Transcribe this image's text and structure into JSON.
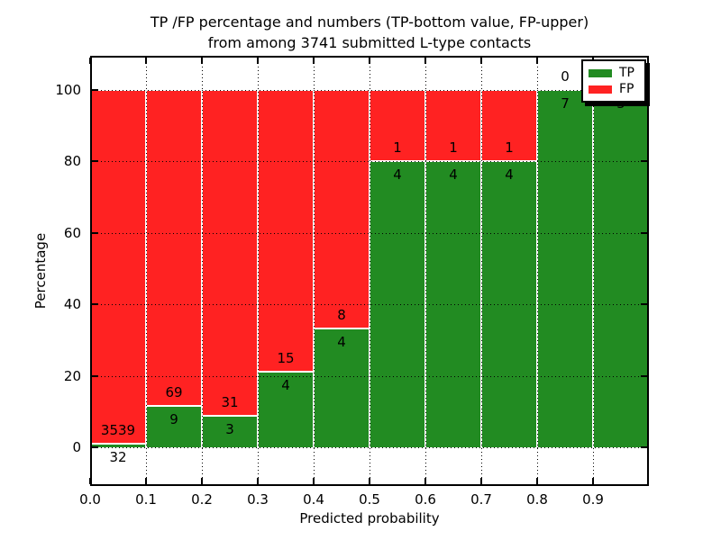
{
  "chart_data": {
    "type": "bar",
    "stacked": true,
    "title_line1": "TP /FP percentage and numbers (TP-bottom value, FP-upper)",
    "title_line2": "from among 3741 submitted L-type contacts",
    "xlabel": "Predicted probability",
    "ylabel": "Percentage",
    "x_tick_labels": [
      "0.0",
      "0.1",
      "0.2",
      "0.3",
      "0.4",
      "0.5",
      "0.6",
      "0.7",
      "0.8",
      "0.9"
    ],
    "y_tick_labels": [
      "0",
      "20",
      "40",
      "60",
      "80",
      "100"
    ],
    "y_tick_values": [
      0,
      20,
      40,
      60,
      80,
      100
    ],
    "xlim": [
      0.0,
      1.0
    ],
    "ylim": [
      -10.8,
      109.6
    ],
    "grid": {
      "style": "dotted",
      "color": "#000000",
      "on": true
    },
    "colors": {
      "tp": "#228B22",
      "fp": "#FF2222",
      "bar_edge": "#FFFFFF",
      "background": "#FFFFFF",
      "text": "#000000"
    },
    "legend": {
      "position": "upper right",
      "shadow": true,
      "entries": [
        {
          "label": "TP",
          "color_key": "tp"
        },
        {
          "label": "FP",
          "color_key": "fp"
        }
      ]
    },
    "bins": [
      {
        "x_range": [
          0.0,
          0.1
        ],
        "tp_count": "32",
        "fp_count": "3539",
        "tp_pct": 0.9,
        "fp_pct": 99.1
      },
      {
        "x_range": [
          0.1,
          0.2
        ],
        "tp_count": "9",
        "fp_count": "69",
        "tp_pct": 11.54,
        "fp_pct": 88.46
      },
      {
        "x_range": [
          0.2,
          0.3
        ],
        "tp_count": "3",
        "fp_count": "31",
        "tp_pct": 8.82,
        "fp_pct": 91.18
      },
      {
        "x_range": [
          0.3,
          0.4
        ],
        "tp_count": "4",
        "fp_count": "15",
        "tp_pct": 21.05,
        "fp_pct": 78.95
      },
      {
        "x_range": [
          0.4,
          0.5
        ],
        "tp_count": "4",
        "fp_count": "8",
        "tp_pct": 33.33,
        "fp_pct": 66.67
      },
      {
        "x_range": [
          0.5,
          0.6
        ],
        "tp_count": "4",
        "fp_count": "1",
        "tp_pct": 80.0,
        "fp_pct": 20.0
      },
      {
        "x_range": [
          0.6,
          0.7
        ],
        "tp_count": "4",
        "fp_count": "1",
        "tp_pct": 80.0,
        "fp_pct": 20.0
      },
      {
        "x_range": [
          0.7,
          0.8
        ],
        "tp_count": "4",
        "fp_count": "1",
        "tp_pct": 80.0,
        "fp_pct": 20.0
      },
      {
        "x_range": [
          0.8,
          0.9
        ],
        "tp_count": "7",
        "fp_count": "0",
        "tp_pct": 100.0,
        "fp_pct": 0.0
      },
      {
        "x_range": [
          0.9,
          1.0
        ],
        "tp_count": "5",
        "fp_count": "0",
        "tp_pct": 100.0,
        "fp_pct": 0.0,
        "fp_label_covered_by_legend": true
      }
    ]
  }
}
